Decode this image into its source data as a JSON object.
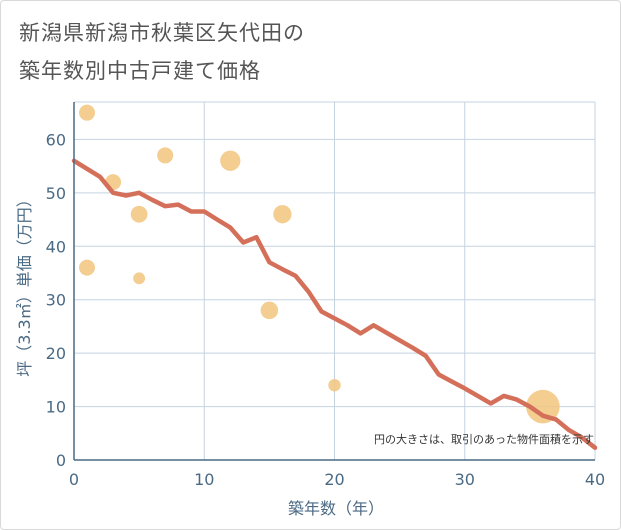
{
  "chart_data": {
    "type": "scatter+line",
    "title_line1": "新潟県新潟市秋葉区矢代田の",
    "title_line2": "築年数別中古戸建て価格",
    "xlabel": "築年数（年）",
    "ylabel": "坪（3.3㎡）単価（万円）",
    "xlim": [
      0,
      40
    ],
    "ylim": [
      0,
      67
    ],
    "xticks": [
      0,
      10,
      20,
      30,
      40
    ],
    "yticks": [
      0,
      10,
      20,
      30,
      40,
      50,
      60
    ],
    "grid": true,
    "note": "円の大きさは、取引のあった物件面積を示す",
    "colors": {
      "scatter": "#f2c47e",
      "line": "#d4705a",
      "grid": "#c5d3e0",
      "axis": "#4a6a84"
    },
    "scatter": [
      {
        "x": 1,
        "y": 65,
        "size": 1
      },
      {
        "x": 1,
        "y": 36,
        "size": 1
      },
      {
        "x": 3,
        "y": 52,
        "size": 1
      },
      {
        "x": 5,
        "y": 46,
        "size": 1.1
      },
      {
        "x": 5,
        "y": 34,
        "size": 0.55
      },
      {
        "x": 7,
        "y": 57,
        "size": 1
      },
      {
        "x": 12,
        "y": 56,
        "size": 1.6
      },
      {
        "x": 15,
        "y": 28,
        "size": 1.2
      },
      {
        "x": 16,
        "y": 46,
        "size": 1.3
      },
      {
        "x": 20,
        "y": 14,
        "size": 0.6
      },
      {
        "x": 36,
        "y": 10,
        "size": 4.4
      }
    ],
    "line": {
      "x": [
        0,
        1,
        2,
        3,
        4,
        5,
        6,
        7,
        8,
        9,
        10,
        11,
        12,
        13,
        14,
        15,
        16,
        17,
        18,
        19,
        20,
        21,
        22,
        23,
        24,
        25,
        26,
        27,
        28,
        29,
        30,
        31,
        32,
        33,
        34,
        35,
        36,
        37,
        38,
        39,
        40
      ],
      "y": [
        56,
        54.5,
        53,
        50,
        49.5,
        50,
        48.7,
        47.5,
        47.8,
        46.5,
        46.5,
        45,
        43.5,
        40.7,
        41.7,
        37,
        35.7,
        34.5,
        31.5,
        27.8,
        26.5,
        25.2,
        23.7,
        25.2,
        23.8,
        22.4,
        21,
        19.5,
        16,
        14.7,
        13.4,
        12,
        10.6,
        12,
        11.3,
        10,
        8.3,
        7.6,
        5.6,
        4.2,
        2.3
      ]
    }
  }
}
